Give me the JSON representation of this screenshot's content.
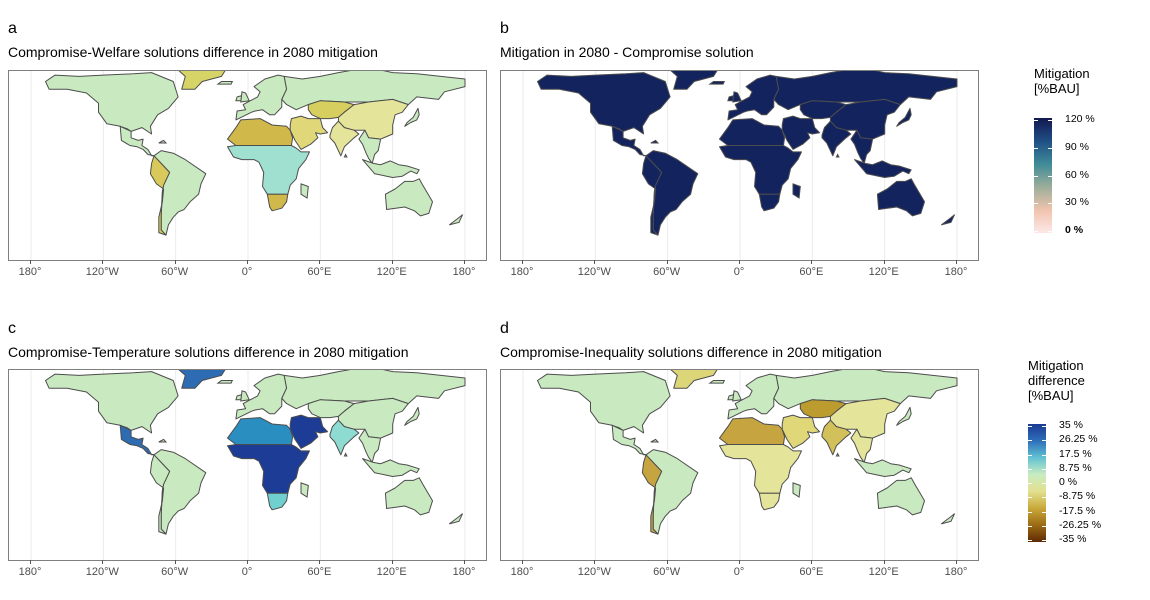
{
  "panels": [
    {
      "letter": "a",
      "title": "Compromise-Welfare solutions difference in 2080 mitigation"
    },
    {
      "letter": "b",
      "title": "Mitigation in 2080 - Compromise solution"
    },
    {
      "letter": "c",
      "title": "Compromise-Temperature solutions difference in 2080 mitigation"
    },
    {
      "letter": "d",
      "title": "Compromise-Inequality solutions difference in 2080 mitigation"
    }
  ],
  "longitude_ticks": [
    "180°",
    "120°W",
    "60°W",
    "0°",
    "60°E",
    "120°E",
    "180°"
  ],
  "legend_mitigation": {
    "title_line1": "Mitigation",
    "title_line2": "[%BAU]",
    "ticks": [
      "120 %",
      "90 %",
      "60 %",
      "30 %",
      "0 %"
    ],
    "colors": [
      "#13184f",
      "#1f4f85",
      "#3f8b98",
      "#9cae9a",
      "#f0c3ad",
      "#fde8e8"
    ]
  },
  "legend_difference": {
    "title_line1": "Mitigation",
    "title_line2": "difference",
    "title_line3": "[%BAU]",
    "ticks": [
      "35 %",
      "26.25 %",
      "17.5 %",
      "8.75 %",
      "0 %",
      "-8.75 %",
      "-17.5 %",
      "-26.25 %",
      "-35 %"
    ],
    "colors": [
      "#1a3a94",
      "#2e6fba",
      "#63c2d2",
      "#c8ecc0",
      "#e3e08f",
      "#c9a83a",
      "#9b6a14",
      "#5e2a05"
    ]
  },
  "regions": {
    "a": {
      "north_america": "#c9e9c0",
      "greenland": "#d6d466",
      "central_america": "#c9e9c0",
      "south_america": "#c9e9c0",
      "south_america_west": "#d8c95a",
      "europe": "#c9e9c0",
      "north_africa": "#d0b84a",
      "sub_saharan_africa": "#9fe0d0",
      "south_africa": "#d0b84a",
      "middle_east": "#dfd778",
      "russia": "#c9e9c0",
      "central_asia": "#d6cf60",
      "china": "#e4e49a",
      "india": "#e4e49a",
      "southeast_asia": "#c9e9c0",
      "indonesia": "#c9e9c0",
      "australia": "#c9e9c0",
      "japan": "#c9e9c0"
    },
    "b": {
      "north_america": "#13235e",
      "greenland": "#13235e",
      "central_america": "#13235e",
      "south_america": "#13235e",
      "south_america_west": "#13235e",
      "europe": "#13235e",
      "north_africa": "#13235e",
      "sub_saharan_africa": "#13235e",
      "south_africa": "#13235e",
      "middle_east": "#13235e",
      "russia": "#13235e",
      "central_asia": "#13235e",
      "china": "#13235e",
      "india": "#13235e",
      "southeast_asia": "#13235e",
      "indonesia": "#13235e",
      "australia": "#13235e",
      "japan": "#13235e"
    },
    "c": {
      "north_america": "#c9e9c0",
      "greenland": "#2d6bb3",
      "central_america": "#2d6bb3",
      "south_america": "#c9e9c0",
      "south_america_west": "#c9e9c0",
      "europe": "#c9e9c0",
      "north_africa": "#2a8fc0",
      "sub_saharan_africa": "#1d3c95",
      "south_africa": "#6fd0cf",
      "middle_east": "#1d3c95",
      "russia": "#c9e9c0",
      "central_asia": "#c9e9c0",
      "china": "#c9e9c0",
      "india": "#8edbd2",
      "southeast_asia": "#c9e9c0",
      "indonesia": "#c9e9c0",
      "australia": "#c9e9c0",
      "japan": "#c9e9c0"
    },
    "d": {
      "north_america": "#c9e9c0",
      "greenland": "#dcd679",
      "central_america": "#c9e9c0",
      "south_america": "#c9e9c0",
      "south_america_west": "#c6a541",
      "europe": "#c9e9c0",
      "north_africa": "#c6a541",
      "sub_saharan_africa": "#e4e49a",
      "south_africa": "#e4e49a",
      "middle_east": "#dfd778",
      "russia": "#c9e9c0",
      "central_asia": "#bc9c2e",
      "china": "#e4e49a",
      "india": "#d2c15a",
      "southeast_asia": "#e4e49a",
      "indonesia": "#c9e9c0",
      "australia": "#c9e9c0",
      "japan": "#c9e9c0"
    }
  }
}
